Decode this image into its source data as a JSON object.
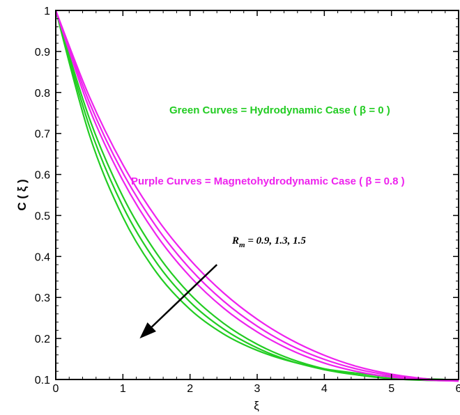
{
  "chart_data": {
    "type": "line",
    "xlabel": "ξ",
    "ylabel": "C ( ξ )",
    "xlim": [
      0,
      6
    ],
    "ylim": [
      0.1,
      1
    ],
    "xticks": [
      "0",
      "1",
      "2",
      "3",
      "4",
      "5",
      "6"
    ],
    "yticks": [
      "0.1",
      "0.2",
      "0.3",
      "0.4",
      "0.5",
      "0.6",
      "0.7",
      "0.8",
      "0.9",
      "1"
    ],
    "grid": false,
    "colors": {
      "green": "#22cc22",
      "purple": "#ee22ee"
    },
    "notes": [
      {
        "text": "Green Curves = Hydrodynamic Case ( β = 0 )",
        "color": "#22cc22"
      },
      {
        "text": "Purple Curves = Magnetohydrodynamic Case ( β = 0.8 )",
        "color": "#ee22ee"
      }
    ],
    "annotation": {
      "R": "R",
      "sub": "m",
      "rest": " = 0.9, 1.3, 1.5"
    },
    "series": [
      {
        "group": "green",
        "x": [
          0,
          0.5,
          1,
          1.5,
          2,
          2.5,
          3,
          3.5,
          4,
          4.5,
          5,
          5.5,
          6
        ],
        "y": [
          1,
          0.697,
          0.496,
          0.361,
          0.271,
          0.211,
          0.171,
          0.144,
          0.126,
          0.115,
          0.107,
          0.102,
          0.099
        ]
      },
      {
        "group": "green",
        "x": [
          0,
          0.5,
          1,
          1.5,
          2,
          2.5,
          3,
          3.5,
          4,
          4.5,
          5,
          5.5,
          6
        ],
        "y": [
          1,
          0.718,
          0.522,
          0.385,
          0.289,
          0.223,
          0.177,
          0.145,
          0.124,
          0.111,
          0.103,
          0.099,
          0.097
        ]
      },
      {
        "group": "green",
        "x": [
          0,
          0.5,
          1,
          1.5,
          2,
          2.5,
          3,
          3.5,
          4,
          4.5,
          5,
          5.5,
          6
        ],
        "y": [
          1,
          0.737,
          0.546,
          0.408,
          0.308,
          0.237,
          0.186,
          0.15,
          0.126,
          0.111,
          0.102,
          0.098,
          0.097
        ]
      },
      {
        "group": "purple",
        "x": [
          0,
          0.5,
          1,
          1.5,
          2,
          2.5,
          3,
          3.5,
          4,
          4.5,
          5,
          5.5,
          6
        ],
        "y": [
          1,
          0.761,
          0.585,
          0.452,
          0.351,
          0.274,
          0.216,
          0.172,
          0.14,
          0.119,
          0.106,
          0.099,
          0.096
        ]
      },
      {
        "group": "purple",
        "x": [
          0,
          0.5,
          1,
          1.5,
          2,
          2.5,
          3,
          3.5,
          4,
          4.5,
          5,
          5.5,
          6
        ],
        "y": [
          1,
          0.776,
          0.604,
          0.472,
          0.37,
          0.291,
          0.23,
          0.183,
          0.149,
          0.125,
          0.11,
          0.101,
          0.097
        ]
      },
      {
        "group": "purple",
        "x": [
          0,
          0.5,
          1,
          1.5,
          2,
          2.5,
          3,
          3.5,
          4,
          4.5,
          5,
          5.5,
          6
        ],
        "y": [
          1,
          0.79,
          0.624,
          0.494,
          0.392,
          0.311,
          0.247,
          0.197,
          0.159,
          0.131,
          0.113,
          0.102,
          0.096
        ]
      }
    ],
    "arrow": {
      "from": [
        2.4,
        0.38
      ],
      "to": [
        1.25,
        0.2
      ]
    }
  }
}
